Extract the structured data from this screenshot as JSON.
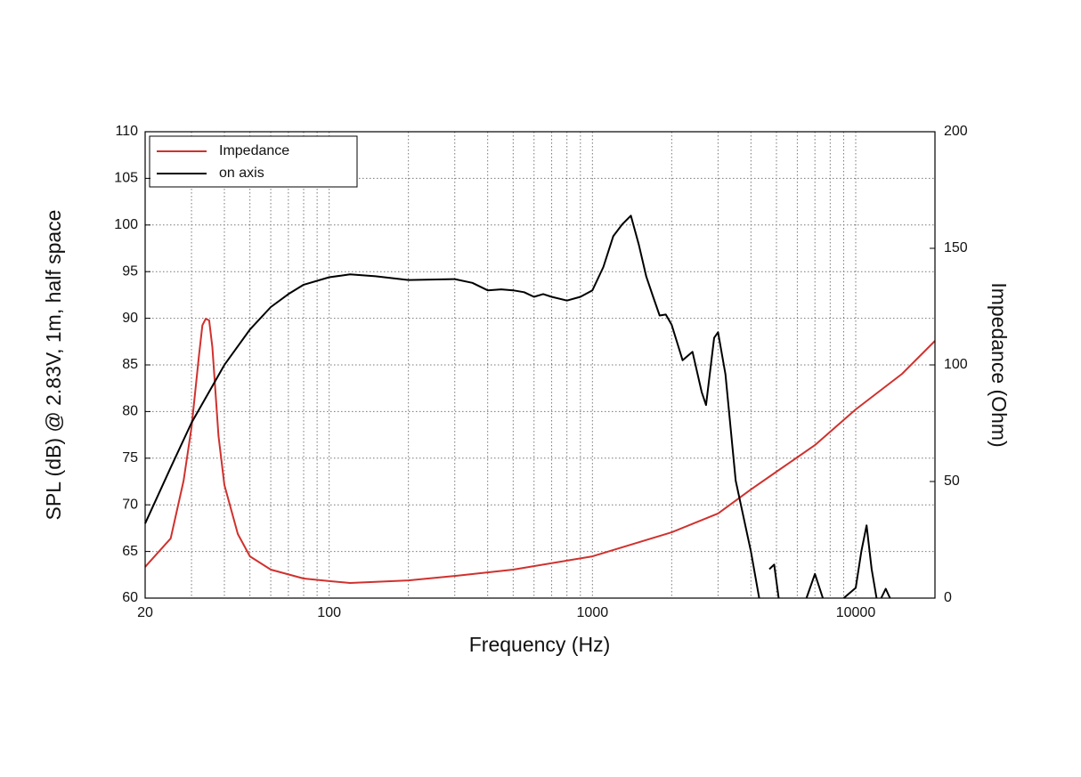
{
  "chart_data": {
    "type": "line",
    "xlabel": "Frequency (Hz)",
    "ylabel": "SPL (dB) @ 2.83V, 1m, half space",
    "y2label": "Impedance (Ohm)",
    "xscale": "log",
    "xlim": [
      20,
      20000
    ],
    "xticks": [
      20,
      100,
      1000,
      10000
    ],
    "xminor_ticks": [
      30,
      40,
      50,
      60,
      70,
      80,
      90,
      200,
      300,
      400,
      500,
      600,
      700,
      800,
      900,
      2000,
      3000,
      4000,
      5000,
      6000,
      7000,
      8000,
      9000,
      20000
    ],
    "ylim": [
      60,
      110
    ],
    "yticks": [
      60,
      65,
      70,
      75,
      80,
      85,
      90,
      95,
      100,
      105,
      110
    ],
    "y2lim": [
      0,
      200
    ],
    "y2ticks": [
      0,
      50,
      100,
      150,
      200
    ],
    "grid": true,
    "legend": "upper left",
    "series": [
      {
        "name": "Impedance",
        "color": "#d0312d",
        "axis": "y2",
        "x": [
          20,
          25,
          28,
          30,
          32,
          33,
          34,
          35,
          36,
          38,
          40,
          45,
          50,
          60,
          80,
          100,
          120,
          200,
          300,
          500,
          1000,
          2000,
          3000,
          4000,
          5000,
          7000,
          10000,
          15000,
          20000
        ],
        "values": [
          13.4,
          25.6,
          50.4,
          73.3,
          103.8,
          117,
          119.8,
          119.1,
          107.6,
          69.5,
          48.5,
          27.5,
          17.9,
          12.2,
          8.4,
          7.3,
          6.5,
          7.6,
          9.5,
          12.2,
          17.9,
          28.2,
          36.3,
          46.6,
          54.2,
          65.6,
          80.9,
          96.2,
          110.3
        ]
      },
      {
        "name": "on axis",
        "color": "#000000",
        "x": [
          20,
          25,
          30,
          40,
          50,
          60,
          70,
          80,
          100,
          120,
          150,
          200,
          300,
          350,
          400,
          450,
          500,
          550,
          600,
          650,
          700,
          800,
          900,
          1000,
          1100,
          1200,
          1300,
          1400,
          1500,
          1600,
          1700,
          1800,
          1900,
          2000,
          2200,
          2400,
          2600,
          2700,
          2900,
          3000,
          3200,
          3500,
          4000,
          4300,
          4500,
          4700,
          4900,
          5100,
          6000,
          6500,
          7000,
          7500,
          8500,
          9000,
          10000,
          10500,
          11000,
          11500,
          12000,
          12300,
          12500,
          13000,
          13500
        ],
        "values": [
          68.0,
          74.0,
          78.8,
          85.0,
          88.8,
          91.2,
          92.6,
          93.6,
          94.4,
          94.7,
          94.5,
          94.1,
          94.2,
          93.8,
          93.0,
          93.1,
          93.0,
          92.8,
          92.3,
          92.6,
          92.3,
          91.9,
          92.3,
          93.0,
          95.5,
          98.8,
          100.1,
          101.0,
          97.9,
          94.5,
          92.3,
          90.3,
          90.4,
          89.3,
          85.5,
          86.4,
          82.1,
          80.7,
          87.9,
          88.5,
          84.0,
          72.6,
          65.0,
          60.0,
          null,
          63.1,
          63.6,
          60.0,
          null,
          60.0,
          62.6,
          60.0,
          null,
          60.0,
          61.1,
          65.0,
          67.8,
          63.1,
          60.0,
          null,
          60.0,
          61.0,
          60.0
        ]
      }
    ]
  }
}
